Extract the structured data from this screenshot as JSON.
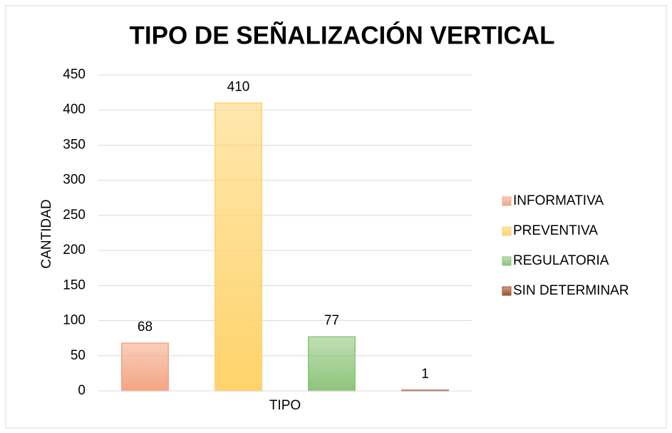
{
  "chart_data": {
    "type": "bar",
    "title": "TIPO DE SEÑALIZACIÓN VERTICAL",
    "x_label": "TIPO",
    "y_label": "CANTIDAD",
    "categories": [
      "TIPO"
    ],
    "series": [
      {
        "name": "INFORMATIVA",
        "color": "#f4a582",
        "values": [
          68
        ]
      },
      {
        "name": "PREVENTIVA",
        "color": "#ffd36b",
        "values": [
          410
        ]
      },
      {
        "name": "REGULATORIA",
        "color": "#8dc47a",
        "values": [
          77
        ]
      },
      {
        "name": "SIN DETERMINAR",
        "color": "#a0522d",
        "values": [
          1
        ]
      }
    ],
    "ylim": [
      0,
      450
    ],
    "yticks": [
      0,
      50,
      100,
      150,
      200,
      250,
      300,
      350,
      400,
      450
    ],
    "grid": true,
    "legend": "right",
    "data_labels": true
  }
}
